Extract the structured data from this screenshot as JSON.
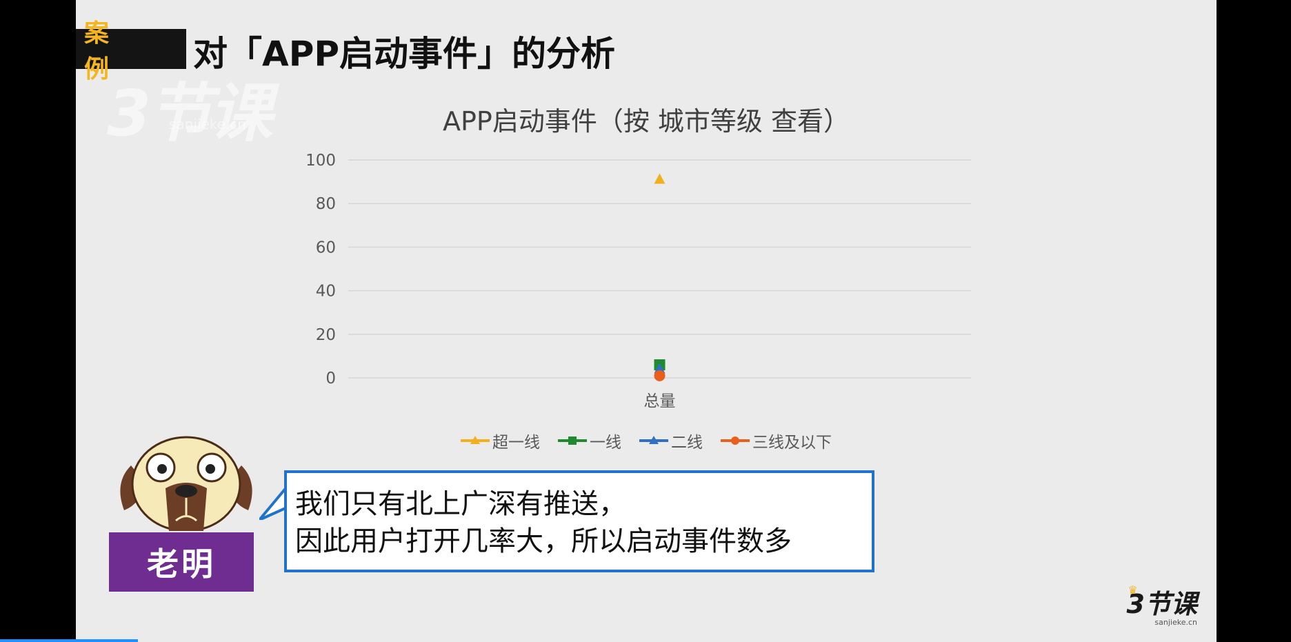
{
  "header": {
    "tag": "案 例",
    "title": "对「APP启动事件」的分析"
  },
  "watermark": {
    "logo": "3节课",
    "url": "sanjieke.cn"
  },
  "chart_data": {
    "type": "line",
    "title": "APP启动事件（按 城市等级 查看）",
    "categories": [
      "总量"
    ],
    "ylim": [
      0,
      100
    ],
    "yticks": [
      0,
      20,
      40,
      60,
      80,
      100
    ],
    "grid": true,
    "legend_position": "bottom",
    "series": [
      {
        "name": "超一线",
        "values": [
          91
        ],
        "color": "#f2b01e",
        "marker": "triangle"
      },
      {
        "name": "一线",
        "values": [
          6
        ],
        "color": "#1f8a2f",
        "marker": "square"
      },
      {
        "name": "二线",
        "values": [
          4
        ],
        "color": "#2f6fc5",
        "marker": "triangle"
      },
      {
        "name": "三线及以下",
        "values": [
          1
        ],
        "color": "#e8601c",
        "marker": "circle"
      }
    ]
  },
  "speaker": {
    "name": "老明",
    "lines": [
      "我们只有北上广深有推送，",
      "因此用户打开几率大，所以启动事件数多"
    ]
  },
  "brand": {
    "logo": "3节课",
    "url": "sanjieke.cn"
  },
  "colors": {
    "accent": "#6f2c91",
    "bubble_border": "#1f73c8",
    "tag_text": "#f5b51d"
  }
}
